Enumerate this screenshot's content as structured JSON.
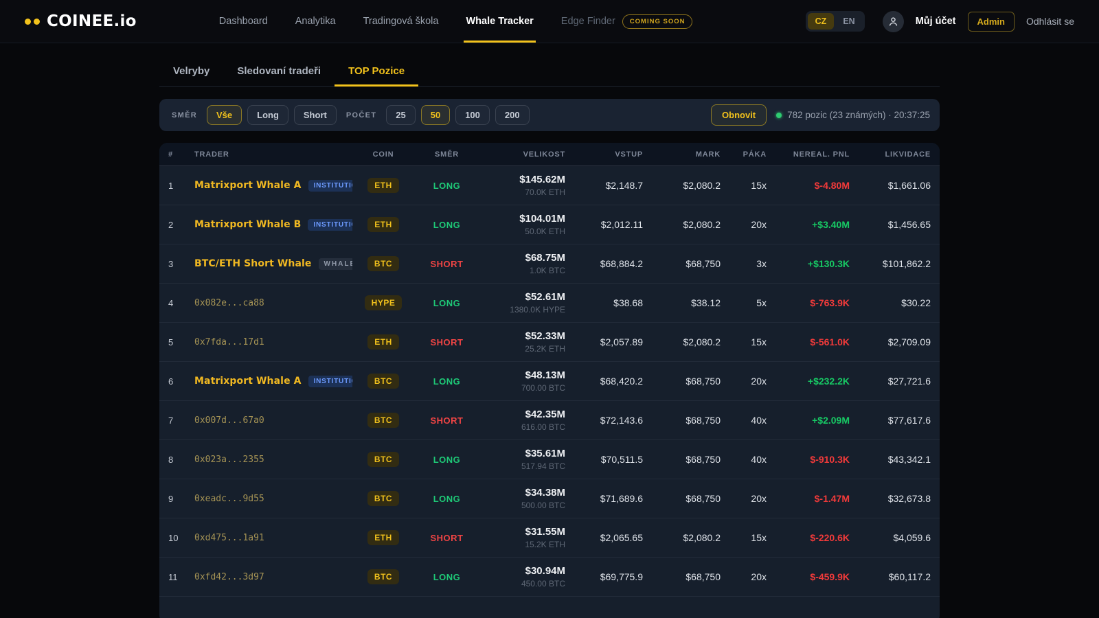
{
  "brand": {
    "name": "COINEE.io"
  },
  "nav": {
    "items": [
      {
        "label": "Dashboard"
      },
      {
        "label": "Analytika"
      },
      {
        "label": "Tradingová škola"
      },
      {
        "label": "Whale Tracker",
        "active": true
      },
      {
        "label": "Edge Finder",
        "dimmed": true,
        "badge": "COMING SOON"
      }
    ]
  },
  "lang": {
    "options": [
      "CZ",
      "EN"
    ],
    "active": "CZ"
  },
  "account": {
    "name": "Můj účet",
    "admin_label": "Admin",
    "logout_label": "Odhlásit se"
  },
  "tabs": [
    {
      "label": "Velryby"
    },
    {
      "label": "Sledovaní tradeři"
    },
    {
      "label": "TOP Pozice",
      "active": true
    }
  ],
  "filters": {
    "direction_label": "SMĚR",
    "direction_options": [
      "Vše",
      "Long",
      "Short"
    ],
    "direction_active": "Vše",
    "count_label": "POČET",
    "count_options": [
      "25",
      "50",
      "100",
      "200"
    ],
    "count_active": "50",
    "refresh_label": "Obnovit",
    "status_text": "782 pozic (23 známých) · 20:37:25"
  },
  "table": {
    "columns": [
      "#",
      "TRADER",
      "COIN",
      "SMĚR",
      "VELIKOST",
      "VSTUP",
      "MARK",
      "PÁKA",
      "NEREAL. PNL",
      "LIKVIDACE"
    ],
    "rows": [
      {
        "rank": "1",
        "trader": "Matrixport Whale A",
        "trader_kind": "named",
        "badge": "INSTITUTION",
        "coin": "ETH",
        "side": "LONG",
        "size_usd": "$145.62M",
        "size_amount": "70.0K ETH",
        "entry": "$2,148.7",
        "mark": "$2,080.2",
        "leverage": "15x",
        "pnl": "$-4.80M",
        "pnl_dir": "neg",
        "liq": "$1,661.06"
      },
      {
        "rank": "2",
        "trader": "Matrixport Whale B",
        "trader_kind": "named",
        "badge": "INSTITUTION",
        "coin": "ETH",
        "side": "LONG",
        "size_usd": "$104.01M",
        "size_amount": "50.0K ETH",
        "entry": "$2,012.11",
        "mark": "$2,080.2",
        "leverage": "20x",
        "pnl": "+$3.40M",
        "pnl_dir": "pos",
        "liq": "$1,456.65"
      },
      {
        "rank": "3",
        "trader": "BTC/ETH Short Whale",
        "trader_kind": "named",
        "badge": "WHALE",
        "coin": "BTC",
        "side": "SHORT",
        "size_usd": "$68.75M",
        "size_amount": "1.0K BTC",
        "entry": "$68,884.2",
        "mark": "$68,750",
        "leverage": "3x",
        "pnl": "+$130.3K",
        "pnl_dir": "pos",
        "liq": "$101,862.2"
      },
      {
        "rank": "4",
        "trader": "0x082e...ca88",
        "trader_kind": "address",
        "badge": null,
        "coin": "HYPE",
        "side": "LONG",
        "size_usd": "$52.61M",
        "size_amount": "1380.0K HYPE",
        "entry": "$38.68",
        "mark": "$38.12",
        "leverage": "5x",
        "pnl": "$-763.9K",
        "pnl_dir": "neg",
        "liq": "$30.22"
      },
      {
        "rank": "5",
        "trader": "0x7fda...17d1",
        "trader_kind": "address",
        "badge": null,
        "coin": "ETH",
        "side": "SHORT",
        "size_usd": "$52.33M",
        "size_amount": "25.2K ETH",
        "entry": "$2,057.89",
        "mark": "$2,080.2",
        "leverage": "15x",
        "pnl": "$-561.0K",
        "pnl_dir": "neg",
        "liq": "$2,709.09"
      },
      {
        "rank": "6",
        "trader": "Matrixport Whale A",
        "trader_kind": "named",
        "badge": "INSTITUTION",
        "coin": "BTC",
        "side": "LONG",
        "size_usd": "$48.13M",
        "size_amount": "700.00 BTC",
        "entry": "$68,420.2",
        "mark": "$68,750",
        "leverage": "20x",
        "pnl": "+$232.2K",
        "pnl_dir": "pos",
        "liq": "$27,721.6"
      },
      {
        "rank": "7",
        "trader": "0x007d...67a0",
        "trader_kind": "address",
        "badge": null,
        "coin": "BTC",
        "side": "SHORT",
        "size_usd": "$42.35M",
        "size_amount": "616.00 BTC",
        "entry": "$72,143.6",
        "mark": "$68,750",
        "leverage": "40x",
        "pnl": "+$2.09M",
        "pnl_dir": "pos",
        "liq": "$77,617.6"
      },
      {
        "rank": "8",
        "trader": "0x023a...2355",
        "trader_kind": "address",
        "badge": null,
        "coin": "BTC",
        "side": "LONG",
        "size_usd": "$35.61M",
        "size_amount": "517.94 BTC",
        "entry": "$70,511.5",
        "mark": "$68,750",
        "leverage": "40x",
        "pnl": "$-910.3K",
        "pnl_dir": "neg",
        "liq": "$43,342.1"
      },
      {
        "rank": "9",
        "trader": "0xeadc...9d55",
        "trader_kind": "address",
        "badge": null,
        "coin": "BTC",
        "side": "LONG",
        "size_usd": "$34.38M",
        "size_amount": "500.00 BTC",
        "entry": "$71,689.6",
        "mark": "$68,750",
        "leverage": "20x",
        "pnl": "$-1.47M",
        "pnl_dir": "neg",
        "liq": "$32,673.8"
      },
      {
        "rank": "10",
        "trader": "0xd475...1a91",
        "trader_kind": "address",
        "badge": null,
        "coin": "ETH",
        "side": "SHORT",
        "size_usd": "$31.55M",
        "size_amount": "15.2K ETH",
        "entry": "$2,065.65",
        "mark": "$2,080.2",
        "leverage": "15x",
        "pnl": "$-220.6K",
        "pnl_dir": "neg",
        "liq": "$4,059.6"
      },
      {
        "rank": "11",
        "trader": "0xfd42...3d97",
        "trader_kind": "address",
        "badge": null,
        "coin": "BTC",
        "side": "LONG",
        "size_usd": "$30.94M",
        "size_amount": "450.00 BTC",
        "entry": "$69,775.9",
        "mark": "$68,750",
        "leverage": "20x",
        "pnl": "$-459.9K",
        "pnl_dir": "neg",
        "liq": "$60,117.2"
      }
    ]
  },
  "colors": {
    "accent": "#f2c21c",
    "long": "#1ec977",
    "short": "#ef4444",
    "pnl_positive": "#17c964",
    "pnl_negative": "#f23a3a",
    "institution_badge_text": "#6d9bff",
    "page_bg": "#07080b",
    "card_bg": "#1a2332",
    "table_bg": "#161f2c",
    "status_dot": "#2ecc71"
  }
}
